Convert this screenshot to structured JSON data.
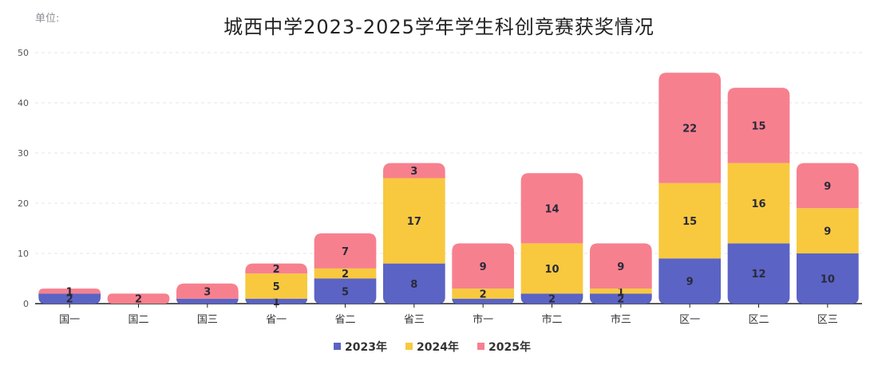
{
  "unit_label": "单位:",
  "chart_data": {
    "type": "bar",
    "stacked": true,
    "title": "城西中学2023-2025学年学生科创竞赛获奖情况",
    "xlabel": "",
    "ylabel": "",
    "categories": [
      "国一",
      "国二",
      "国三",
      "省一",
      "省二",
      "省三",
      "市一",
      "市二",
      "市三",
      "区一",
      "区二",
      "区三"
    ],
    "series": [
      {
        "name": "2023年",
        "color": "#5B63C4",
        "values": [
          2,
          0,
          1,
          1,
          5,
          8,
          1,
          2,
          2,
          9,
          12,
          10
        ]
      },
      {
        "name": "2024年",
        "color": "#F8C93E",
        "values": [
          0,
          0,
          0,
          5,
          2,
          17,
          2,
          10,
          1,
          15,
          16,
          9
        ]
      },
      {
        "name": "2025年",
        "color": "#F7808E",
        "values": [
          1,
          2,
          3,
          2,
          7,
          3,
          9,
          14,
          9,
          22,
          15,
          9
        ]
      }
    ],
    "labels": [
      [
        "2",
        "",
        "",
        "1",
        "5",
        "8",
        "",
        "2",
        "2",
        "9",
        "12",
        "10"
      ],
      [
        "",
        "",
        "",
        "5",
        "2",
        "17",
        "2",
        "10",
        "1",
        "15",
        "16",
        "9"
      ],
      [
        "1",
        "2",
        "3",
        "2",
        "7",
        "3",
        "9",
        "14",
        "9",
        "22",
        "15",
        "9"
      ]
    ],
    "yticks": [
      "0",
      "10",
      "20",
      "30",
      "40",
      "50"
    ],
    "ylim": [
      0,
      50
    ],
    "grid": true,
    "legend_position": "bottom"
  }
}
